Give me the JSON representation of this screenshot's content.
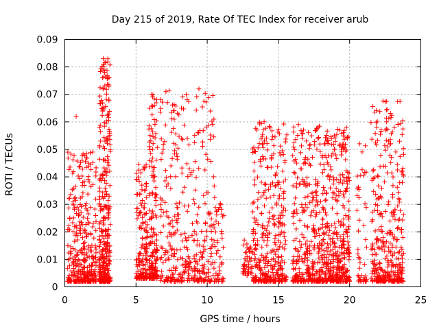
{
  "chart_data": {
    "type": "scatter",
    "title": "Day 215 of 2019, Rate Of TEC Index for receiver arub",
    "xlabel": "GPS time / hours",
    "ylabel": "ROTI / TECUs",
    "xlim": [
      0,
      25
    ],
    "ylim": [
      0,
      0.09
    ],
    "x_ticks": [
      "0",
      "5",
      "10",
      "15",
      "20",
      "25"
    ],
    "y_ticks": [
      "0",
      "0.01",
      "0.02",
      "0.03",
      "0.04",
      "0.05",
      "0.06",
      "0.07",
      "0.08",
      "0.09"
    ],
    "grid": true,
    "marker": "+",
    "color": "#ff0000",
    "clusters": [
      {
        "x_range": [
          0.2,
          2.2
        ],
        "y_range": [
          0.002,
          0.05
        ],
        "density": "high"
      },
      {
        "x_range": [
          2.4,
          3.2
        ],
        "y_range": [
          0.002,
          0.083
        ],
        "density": "high"
      },
      {
        "x_range": [
          5.0,
          5.8
        ],
        "y_range": [
          0.003,
          0.045
        ],
        "density": "medium"
      },
      {
        "x_range": [
          5.9,
          6.5
        ],
        "y_range": [
          0.003,
          0.07
        ],
        "density": "medium"
      },
      {
        "x_range": [
          6.7,
          10.5
        ],
        "y_range": [
          0.002,
          0.072
        ],
        "density": "high"
      },
      {
        "x_range": [
          10.5,
          11.2
        ],
        "y_range": [
          0.002,
          0.035
        ],
        "density": "low"
      },
      {
        "x_range": [
          12.5,
          13.2
        ],
        "y_range": [
          0.005,
          0.017
        ],
        "density": "low"
      },
      {
        "x_range": [
          13.2,
          15.6
        ],
        "y_range": [
          0.002,
          0.06
        ],
        "density": "high"
      },
      {
        "x_range": [
          16.0,
          18.2
        ],
        "y_range": [
          0.002,
          0.06
        ],
        "density": "high"
      },
      {
        "x_range": [
          18.2,
          20.0
        ],
        "y_range": [
          0.002,
          0.058
        ],
        "density": "high"
      },
      {
        "x_range": [
          20.5,
          21.2
        ],
        "y_range": [
          0.002,
          0.052
        ],
        "density": "low"
      },
      {
        "x_range": [
          21.5,
          23.8
        ],
        "y_range": [
          0.002,
          0.068
        ],
        "density": "high"
      }
    ],
    "notable_points": [
      {
        "x": 0.8,
        "y": 0.062
      },
      {
        "x": 2.7,
        "y": 0.083
      },
      {
        "x": 2.7,
        "y": 0.081
      },
      {
        "x": 2.8,
        "y": 0.078
      },
      {
        "x": 2.7,
        "y": 0.072
      },
      {
        "x": 6.1,
        "y": 0.07
      },
      {
        "x": 7.1,
        "y": 0.071
      },
      {
        "x": 7.2,
        "y": 0.067
      },
      {
        "x": 8.6,
        "y": 0.054
      },
      {
        "x": 9.4,
        "y": 0.056
      },
      {
        "x": 14.0,
        "y": 0.06
      },
      {
        "x": 16.4,
        "y": 0.059
      },
      {
        "x": 19.3,
        "y": 0.057
      },
      {
        "x": 22.6,
        "y": 0.0675
      },
      {
        "x": 22.6,
        "y": 0.06
      },
      {
        "x": 12.6,
        "y": 0.017
      },
      {
        "x": 12.8,
        "y": 0.011
      },
      {
        "x": 12.8,
        "y": 0.004
      },
      {
        "x": 23.7,
        "y": 0.038
      },
      {
        "x": 20.7,
        "y": 0.052
      }
    ]
  }
}
